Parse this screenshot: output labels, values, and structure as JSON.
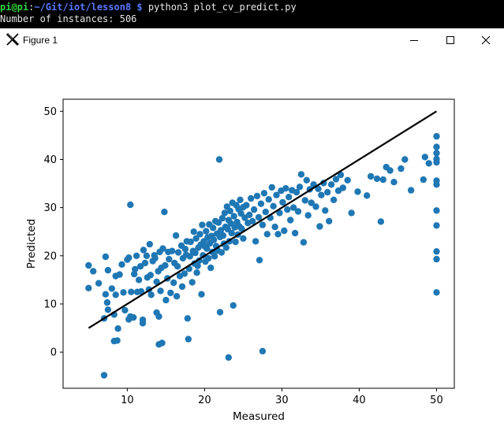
{
  "terminal": {
    "prompt_user": "pi@pi",
    "prompt_path": "~/Git/iot/lesson8 $",
    "command": "python3 plot_cv_predict.py",
    "output": "Number of instances: 506"
  },
  "window": {
    "title": "Figure 1",
    "app_icon": "matplotlib-x-icon",
    "controls": {
      "minimize": "minimize-icon",
      "maximize": "maximize-icon",
      "close": "close-icon"
    }
  },
  "chart_data": {
    "type": "scatter",
    "xlabel": "Measured",
    "ylabel": "Predicted",
    "xlim": [
      1.7,
      52.3
    ],
    "ylim": [
      -7.5,
      52.5
    ],
    "xticks": [
      10,
      20,
      30,
      40,
      50
    ],
    "yticks": [
      0,
      10,
      20,
      30,
      40,
      50
    ],
    "grid": false,
    "point_color": "#1f77b4",
    "line_color": "#000000",
    "reference_line": {
      "x": [
        5,
        50
      ],
      "y": [
        5,
        50
      ]
    },
    "points": [
      [
        5.0,
        18.0
      ],
      [
        5.0,
        13.3
      ],
      [
        5.6,
        16.8
      ],
      [
        6.3,
        14.3
      ],
      [
        7.0,
        -4.8
      ],
      [
        7.0,
        7.0
      ],
      [
        7.2,
        19.8
      ],
      [
        7.2,
        12.0
      ],
      [
        7.4,
        10.3
      ],
      [
        7.5,
        17.0
      ],
      [
        7.5,
        8.8
      ],
      [
        8.0,
        13.2
      ],
      [
        8.3,
        7.8
      ],
      [
        8.5,
        11.9
      ],
      [
        8.3,
        2.3
      ],
      [
        8.5,
        15.8
      ],
      [
        8.7,
        2.4
      ],
      [
        8.8,
        4.9
      ],
      [
        9.0,
        16.1
      ],
      [
        9.3,
        18.2
      ],
      [
        9.5,
        12.4
      ],
      [
        9.7,
        8.7
      ],
      [
        10.0,
        19.2
      ],
      [
        10.2,
        19.6
      ],
      [
        10.2,
        6.8
      ],
      [
        10.4,
        30.6
      ],
      [
        10.4,
        7.4
      ],
      [
        10.5,
        12.5
      ],
      [
        10.8,
        7.2
      ],
      [
        10.9,
        16.2
      ],
      [
        11.0,
        17.2
      ],
      [
        11.2,
        20.0
      ],
      [
        11.3,
        12.5
      ],
      [
        11.5,
        15.0
      ],
      [
        11.7,
        17.8
      ],
      [
        11.8,
        12.6
      ],
      [
        12.0,
        6.0
      ],
      [
        12.0,
        6.7
      ],
      [
        12.1,
        21.2
      ],
      [
        12.3,
        18.5
      ],
      [
        12.5,
        20.0
      ],
      [
        12.6,
        15.5
      ],
      [
        12.8,
        13.0
      ],
      [
        12.9,
        22.4
      ],
      [
        13.0,
        16.0
      ],
      [
        13.1,
        11.9
      ],
      [
        13.3,
        18.9
      ],
      [
        13.5,
        20.1
      ],
      [
        13.6,
        19.5
      ],
      [
        13.8,
        8.2
      ],
      [
        13.8,
        14.6
      ],
      [
        14.0,
        16.8
      ],
      [
        14.1,
        7.4
      ],
      [
        14.1,
        1.6
      ],
      [
        14.2,
        20.8
      ],
      [
        14.3,
        12.7
      ],
      [
        14.4,
        17.5
      ],
      [
        14.5,
        1.9
      ],
      [
        14.6,
        21.5
      ],
      [
        14.8,
        29.1
      ],
      [
        14.9,
        18.0
      ],
      [
        15.0,
        10.8
      ],
      [
        15.2,
        15.3
      ],
      [
        15.3,
        20.8
      ],
      [
        15.4,
        19.3
      ],
      [
        15.6,
        12.3
      ],
      [
        15.8,
        21.0
      ],
      [
        16.0,
        14.4
      ],
      [
        16.1,
        18.5
      ],
      [
        16.3,
        24.2
      ],
      [
        16.4,
        11.6
      ],
      [
        16.5,
        17.8
      ],
      [
        16.6,
        20.7
      ],
      [
        16.8,
        15.8
      ],
      [
        17.0,
        22.1
      ],
      [
        17.1,
        13.6
      ],
      [
        17.2,
        19.5
      ],
      [
        17.4,
        16.3
      ],
      [
        17.5,
        21.4
      ],
      [
        17.6,
        20.2
      ],
      [
        17.7,
        23.0
      ],
      [
        17.8,
        7.0
      ],
      [
        17.9,
        2.7
      ],
      [
        18.0,
        17.3
      ],
      [
        18.1,
        19.9
      ],
      [
        18.2,
        22.9
      ],
      [
        18.4,
        14.5
      ],
      [
        18.5,
        21.0
      ],
      [
        18.6,
        25.0
      ],
      [
        18.7,
        18.4
      ],
      [
        18.8,
        20.6
      ],
      [
        18.9,
        23.6
      ],
      [
        19.0,
        16.5
      ],
      [
        19.1,
        17.9
      ],
      [
        19.2,
        21.7
      ],
      [
        19.3,
        19.0
      ],
      [
        19.4,
        24.5
      ],
      [
        19.5,
        22.3
      ],
      [
        19.6,
        12.0
      ],
      [
        19.7,
        26.4
      ],
      [
        19.8,
        20.1
      ],
      [
        19.9,
        23.0
      ],
      [
        20.0,
        22.0
      ],
      [
        20.1,
        18.8
      ],
      [
        20.2,
        25.1
      ],
      [
        20.3,
        21.5
      ],
      [
        20.4,
        23.8
      ],
      [
        20.5,
        19.5
      ],
      [
        20.6,
        26.5
      ],
      [
        20.7,
        22.6
      ],
      [
        20.8,
        17.5
      ],
      [
        20.9,
        24.1
      ],
      [
        21.0,
        20.8
      ],
      [
        21.1,
        25.8
      ],
      [
        21.2,
        23.3
      ],
      [
        21.3,
        19.9
      ],
      [
        21.4,
        27.2
      ],
      [
        21.5,
        22.0
      ],
      [
        21.6,
        24.6
      ],
      [
        21.7,
        21.1
      ],
      [
        21.8,
        26.9
      ],
      [
        21.9,
        40.0
      ],
      [
        22.0,
        23.9
      ],
      [
        22.0,
        8.3
      ],
      [
        22.1,
        25.3
      ],
      [
        22.2,
        20.7
      ],
      [
        22.3,
        27.8
      ],
      [
        22.4,
        24.2
      ],
      [
        22.5,
        22.5
      ],
      [
        22.6,
        28.9
      ],
      [
        22.7,
        26.0
      ],
      [
        22.8,
        21.7
      ],
      [
        22.9,
        30.2
      ],
      [
        23.0,
        25.5
      ],
      [
        23.1,
        27.4
      ],
      [
        23.1,
        -1.1
      ],
      [
        23.2,
        23.0
      ],
      [
        23.3,
        29.3
      ],
      [
        23.4,
        26.7
      ],
      [
        23.5,
        24.7
      ],
      [
        23.6,
        31.0
      ],
      [
        23.7,
        9.7
      ],
      [
        23.8,
        28.2
      ],
      [
        23.9,
        25.9
      ],
      [
        24.0,
        22.9
      ],
      [
        24.1,
        30.5
      ],
      [
        24.2,
        27.0
      ],
      [
        24.3,
        24.4
      ],
      [
        24.4,
        29.7
      ],
      [
        24.5,
        26.1
      ],
      [
        24.6,
        31.6
      ],
      [
        24.7,
        28.8
      ],
      [
        24.8,
        25.6
      ],
      [
        25.0,
        30.1
      ],
      [
        25.0,
        23.6
      ],
      [
        25.2,
        27.9
      ],
      [
        25.4,
        30.5
      ],
      [
        25.6,
        26.8
      ],
      [
        25.8,
        28.5
      ],
      [
        26.0,
        31.9
      ],
      [
        26.2,
        27.2
      ],
      [
        26.4,
        29.6
      ],
      [
        26.6,
        23.0
      ],
      [
        26.8,
        32.4
      ],
      [
        27.0,
        28.0
      ],
      [
        27.1,
        19.1
      ],
      [
        27.3,
        30.8
      ],
      [
        27.5,
        26.4
      ],
      [
        27.5,
        0.2
      ],
      [
        27.7,
        33.0
      ],
      [
        27.9,
        29.1
      ],
      [
        28.1,
        24.5
      ],
      [
        28.3,
        31.7
      ],
      [
        28.5,
        27.9
      ],
      [
        28.7,
        34.2
      ],
      [
        28.9,
        30.3
      ],
      [
        29.1,
        26.0
      ],
      [
        29.3,
        32.6
      ],
      [
        29.5,
        24.5
      ],
      [
        29.7,
        28.9
      ],
      [
        29.9,
        33.5
      ],
      [
        30.1,
        31.1
      ],
      [
        30.3,
        25.2
      ],
      [
        30.5,
        34.0
      ],
      [
        30.7,
        29.6
      ],
      [
        30.9,
        32.2
      ],
      [
        31.1,
        27.4
      ],
      [
        31.3,
        33.6
      ],
      [
        31.5,
        30.0
      ],
      [
        31.7,
        24.7
      ],
      [
        31.9,
        33.2
      ],
      [
        32.1,
        29.2
      ],
      [
        32.3,
        34.3
      ],
      [
        32.5,
        36.9
      ],
      [
        32.8,
        22.8
      ],
      [
        33.0,
        31.5
      ],
      [
        33.2,
        35.7
      ],
      [
        33.4,
        28.4
      ],
      [
        33.6,
        33.8
      ],
      [
        33.8,
        31.0
      ],
      [
        34.1,
        34.8
      ],
      [
        34.4,
        30.2
      ],
      [
        34.7,
        33.9
      ],
      [
        34.9,
        26.1
      ],
      [
        35.1,
        32.6
      ],
      [
        35.4,
        35.1
      ],
      [
        35.6,
        29.4
      ],
      [
        35.9,
        33.2
      ],
      [
        36.1,
        27.2
      ],
      [
        36.4,
        34.8
      ],
      [
        36.7,
        31.6
      ],
      [
        37.0,
        35.9
      ],
      [
        37.3,
        33.5
      ],
      [
        37.6,
        36.8
      ],
      [
        37.9,
        34.1
      ],
      [
        38.5,
        35.7
      ],
      [
        39.0,
        28.9
      ],
      [
        39.8,
        33.3
      ],
      [
        41.0,
        32.5
      ],
      [
        41.5,
        36.5
      ],
      [
        42.3,
        36.0
      ],
      [
        42.8,
        27.1
      ],
      [
        43.1,
        35.8
      ],
      [
        43.5,
        38.4
      ],
      [
        44.0,
        37.7
      ],
      [
        44.5,
        35.3
      ],
      [
        45.4,
        38.1
      ],
      [
        45.9,
        40.0
      ],
      [
        46.7,
        33.6
      ],
      [
        48.3,
        35.8
      ],
      [
        48.5,
        40.5
      ],
      [
        49.0,
        39.2
      ],
      [
        50.0,
        44.8
      ],
      [
        50.0,
        42.6
      ],
      [
        50.0,
        41.3
      ],
      [
        50.0,
        40.1
      ],
      [
        50.0,
        39.4
      ],
      [
        50.0,
        35.6
      ],
      [
        50.0,
        34.8
      ],
      [
        50.0,
        29.4
      ],
      [
        50.0,
        26.3
      ],
      [
        50.0,
        20.9
      ],
      [
        50.0,
        19.3
      ],
      [
        50.0,
        12.4
      ]
    ]
  }
}
